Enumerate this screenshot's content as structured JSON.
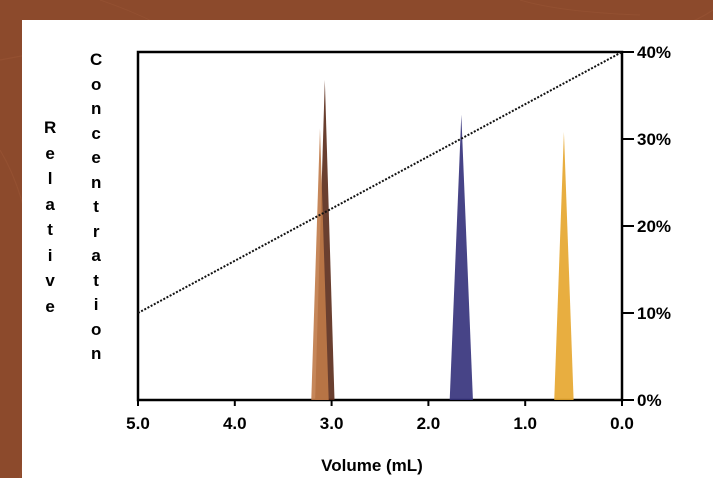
{
  "chart_data": {
    "type": "line",
    "title": "",
    "xlabel": "Volume (mL)",
    "ylabel_left_line1": "Relative",
    "ylabel_left_line2": "Concentration",
    "xlim": [
      5.0,
      0.0
    ],
    "x_reversed": true,
    "x_ticks": [
      5.0,
      4.0,
      3.0,
      2.0,
      1.0,
      0.0
    ],
    "x_tick_labels": [
      "5.0",
      "4.0",
      "3.0",
      "2.0",
      "1.0",
      "0.0"
    ],
    "y_right_lim": [
      0,
      40
    ],
    "y_right_ticks": [
      0,
      10,
      20,
      30,
      40
    ],
    "y_right_tick_labels": [
      "0%",
      "10%",
      "20%",
      "30%",
      "40%"
    ],
    "grid": false,
    "legend": "none",
    "gradient": {
      "style": "dotted",
      "color": "#111111",
      "x": [
        5.0,
        0.0
      ],
      "y": [
        10,
        40
      ]
    },
    "peaks": [
      {
        "center": 3.07,
        "width": 0.2,
        "height": 0.92,
        "color": "#5a2a18"
      },
      {
        "center": 3.12,
        "width": 0.18,
        "height": 0.78,
        "color": "#c07a48"
      },
      {
        "center": 1.66,
        "width": 0.24,
        "height": 0.82,
        "color": "#33307a"
      },
      {
        "center": 0.6,
        "width": 0.2,
        "height": 0.77,
        "color": "#e6a52b"
      }
    ]
  },
  "colors": {
    "background": "#8c4a2c",
    "panel": "#ffffff",
    "axis": "#000000"
  }
}
